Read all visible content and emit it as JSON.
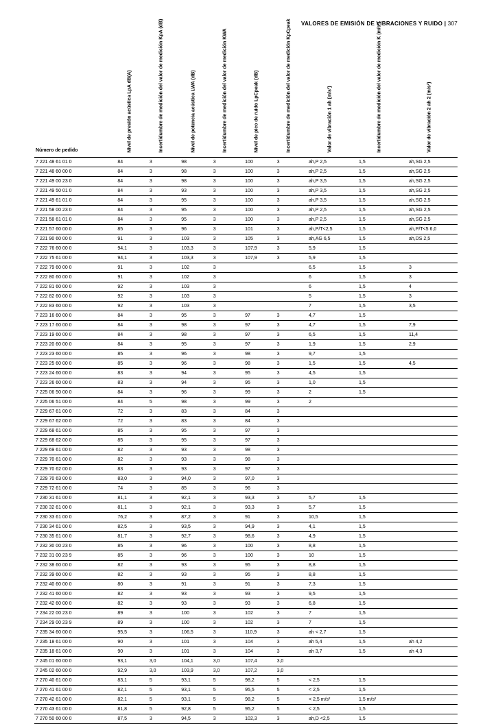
{
  "header": {
    "title": "VALORES DE EMISIÓN DE VIBRACIONES Y RUIDO",
    "page": "307"
  },
  "table": {
    "columns": [
      "Número de pedido",
      "Nivel de presión acústica LpA dB(A)",
      "Incertidumbre de medición del valor de medición KpA (dB)",
      "Nivel de potencia acústica LWA (dB)",
      "Incertidumbre de medición del valor de medición KWA",
      "Nivel de pico de ruido LpCpeak (dB)",
      "Incertidumbre de medición del valor de medición KpCpeak",
      "Valor de vibración 1 ah (m/s²)",
      "Incertidumbre de medición del valor de medición K (m/s²)",
      "Valor de vibración 2 ah 2 (m/s²)"
    ],
    "rows": [
      [
        "7 221 48 61 01 0",
        "84",
        "3",
        "98",
        "3",
        "100",
        "3",
        "ah,P 2,5",
        "1,5",
        "ah,SG 2,5"
      ],
      [
        "7 221 48 60 00 0",
        "84",
        "3",
        "98",
        "3",
        "100",
        "3",
        "ah,P 2,5",
        "1,5",
        "ah,SG 2,5"
      ],
      [
        "7 221 49 00 23 0",
        "84",
        "3",
        "98",
        "3",
        "100",
        "3",
        "ah,P 3,5",
        "1,5",
        "ah,SG 2,5"
      ],
      [
        "7 221 49 50 01 0",
        "84",
        "3",
        "93",
        "3",
        "100",
        "3",
        "ah,P 3,5",
        "1,5",
        "ah,SG 2,5"
      ],
      [
        "7 221 49 61 01 0",
        "84",
        "3",
        "95",
        "3",
        "100",
        "3",
        "ah,P 3,5",
        "1,5",
        "ah,SG 2,5"
      ],
      [
        "7 221 58 00 23 0",
        "84",
        "3",
        "95",
        "3",
        "100",
        "3",
        "ah,P 2,5",
        "1,5",
        "ah,SG 2,5"
      ],
      [
        "7 221 58 61 01 0",
        "84",
        "3",
        "95",
        "3",
        "100",
        "3",
        "ah,P 2,5",
        "1,5",
        "ah,SG 2,5"
      ],
      [
        "7 221 57 60 00 0",
        "85",
        "3",
        "96",
        "3",
        "101",
        "3",
        "ah,P/T<2,5",
        "1,5",
        "ah,P/T<5 6,0"
      ],
      [
        "7 221 90 60 00 0",
        "91",
        "3",
        "103",
        "3",
        "105",
        "3",
        "ah,AG 6,5",
        "1,5",
        "ah,DS 2,5"
      ],
      [
        "7 222 76 60 00 0",
        "94,1",
        "3",
        "103,3",
        "3",
        "107,9",
        "3",
        "5,9",
        "1,5",
        ""
      ],
      [
        "7 222 75 61 00 0",
        "94,1",
        "3",
        "103,3",
        "3",
        "107,9",
        "3",
        "5,9",
        "1,5",
        ""
      ],
      [
        "7 222 79 60 00 0",
        "91",
        "3",
        "102",
        "3",
        "",
        "",
        "6,5",
        "1,5",
        "3"
      ],
      [
        "7 222 80 60 00 0",
        "91",
        "3",
        "102",
        "3",
        "",
        "",
        "6",
        "1,5",
        "3"
      ],
      [
        "7 222 81 60 00 0",
        "92",
        "3",
        "103",
        "3",
        "",
        "",
        "6",
        "1,5",
        "4"
      ],
      [
        "7 222 82 60 00 0",
        "92",
        "3",
        "103",
        "3",
        "",
        "",
        "5",
        "1,5",
        "3"
      ],
      [
        "7 222 83 60 00 0",
        "92",
        "3",
        "103",
        "3",
        "",
        "",
        "7",
        "1,5",
        "3,5"
      ],
      [
        "7 223 16 60 00 0",
        "84",
        "3",
        "95",
        "3",
        "97",
        "3",
        "4,7",
        "1,5",
        ""
      ],
      [
        "7 223 17 60 00 0",
        "84",
        "3",
        "98",
        "3",
        "97",
        "3",
        "4,7",
        "1,5",
        "7,9"
      ],
      [
        "7 223 19 60 00 0",
        "84",
        "3",
        "98",
        "3",
        "97",
        "3",
        "6,5",
        "1,5",
        "11,4"
      ],
      [
        "7 223 20 60 00 0",
        "84",
        "3",
        "95",
        "3",
        "97",
        "3",
        "1,9",
        "1,5",
        "2,9"
      ],
      [
        "7 223 23 60 00 0",
        "85",
        "3",
        "96",
        "3",
        "98",
        "3",
        "9,7",
        "1,5",
        ""
      ],
      [
        "7 223 25 60 00 0",
        "85",
        "3",
        "96",
        "3",
        "98",
        "3",
        "1,5",
        "1,5",
        "4,5"
      ],
      [
        "7 223 24 60 00 0",
        "83",
        "3",
        "94",
        "3",
        "95",
        "3",
        "4,5",
        "1,5",
        ""
      ],
      [
        "7 223 26 60 00 0",
        "83",
        "3",
        "94",
        "3",
        "95",
        "3",
        "1,0",
        "1,5",
        ""
      ],
      [
        "7 225 06 50 00 0",
        "84",
        "3",
        "96",
        "3",
        "99",
        "3",
        "2",
        "1,5",
        ""
      ],
      [
        "7 225 06 51 00 0",
        "84",
        "5",
        "98",
        "3",
        "99",
        "3",
        "2",
        "",
        ""
      ],
      [
        "7 229 67 61 00 0",
        "72",
        "3",
        "83",
        "3",
        "84",
        "3",
        "",
        "",
        ""
      ],
      [
        "7 229 67 62 00 0",
        "72",
        "3",
        "83",
        "3",
        "84",
        "3",
        "",
        "",
        ""
      ],
      [
        "7 229 68 61 00 0",
        "85",
        "3",
        "95",
        "3",
        "97",
        "3",
        "",
        "",
        ""
      ],
      [
        "7 229 68 62 00 0",
        "85",
        "3",
        "95",
        "3",
        "97",
        "3",
        "",
        "",
        ""
      ],
      [
        "7 229 69 61 00 0",
        "82",
        "3",
        "93",
        "3",
        "98",
        "3",
        "",
        "",
        ""
      ],
      [
        "7 229 70 61 00 0",
        "82",
        "3",
        "93",
        "3",
        "98",
        "3",
        "",
        "",
        ""
      ],
      [
        "7 229 70 62 00 0",
        "83",
        "3",
        "93",
        "3",
        "97",
        "3",
        "",
        "",
        ""
      ],
      [
        "7 229 70 63 00 0",
        "83,0",
        "3",
        "94,0",
        "3",
        "97,0",
        "3",
        "",
        "",
        ""
      ],
      [
        "7 229 72 61 00 0",
        "74",
        "3",
        "85",
        "3",
        "96",
        "3",
        "",
        "",
        ""
      ],
      [
        "7 230 31 61 00 0",
        "81,1",
        "3",
        "92,1",
        "3",
        "93,3",
        "3",
        "5,7",
        "1,5",
        ""
      ],
      [
        "7 230 32 61 00 0",
        "81,1",
        "3",
        "92,1",
        "3",
        "93,3",
        "3",
        "5,7",
        "1,5",
        ""
      ],
      [
        "7 230 33 61 00 0",
        "76,2",
        "3",
        "87,2",
        "3",
        "91",
        "3",
        "10,5",
        "1,5",
        ""
      ],
      [
        "7 230 34 61 00 0",
        "82,5",
        "3",
        "93,5",
        "3",
        "94,9",
        "3",
        "4,1",
        "1,5",
        ""
      ],
      [
        "7 230 35 61 00 0",
        "81,7",
        "3",
        "92,7",
        "3",
        "98,6",
        "3",
        "4,9",
        "1,5",
        ""
      ],
      [
        "7 232 30 00 23 0",
        "85",
        "3",
        "96",
        "3",
        "100",
        "3",
        "8,8",
        "1,5",
        ""
      ],
      [
        "7 232 31 00 23 9",
        "85",
        "3",
        "96",
        "3",
        "100",
        "3",
        "10",
        "1,5",
        ""
      ],
      [
        "7 232 38 60 00 0",
        "82",
        "3",
        "93",
        "3",
        "95",
        "3",
        "8,8",
        "1,5",
        ""
      ],
      [
        "7 232 39 60 00 0",
        "82",
        "3",
        "93",
        "3",
        "95",
        "3",
        "8,8",
        "1,5",
        ""
      ],
      [
        "7 232 40 60 00 0",
        "80",
        "3",
        "91",
        "3",
        "91",
        "3",
        "7,3",
        "1,5",
        ""
      ],
      [
        "7 232 41 60 00 0",
        "82",
        "3",
        "93",
        "3",
        "93",
        "3",
        "9,5",
        "1,5",
        ""
      ],
      [
        "7 232 42 60 00 0",
        "82",
        "3",
        "93",
        "3",
        "93",
        "3",
        "6,8",
        "1,5",
        ""
      ],
      [
        "7 234 22 00 23 0",
        "89",
        "3",
        "100",
        "3",
        "102",
        "3",
        "7",
        "1,5",
        ""
      ],
      [
        "7 234 29 00 23 9",
        "89",
        "3",
        "100",
        "3",
        "102",
        "3",
        "7",
        "1,5",
        ""
      ],
      [
        "7 235 34 60 00 0",
        "95,5",
        "3",
        "106,5",
        "3",
        "110,9",
        "3",
        "ah < 2,7",
        "1,5",
        ""
      ],
      [
        "7 235 18 61 00 0",
        "90",
        "3",
        "101",
        "3",
        "104",
        "3",
        "ah 5,4",
        "1,5",
        "ah 4,2"
      ],
      [
        "7 235 18 61 00 0",
        "90",
        "3",
        "101",
        "3",
        "104",
        "3",
        "ah 3,7",
        "1,5",
        "ah 4,3"
      ],
      [
        "7 245 01 60 00 0",
        "93,1",
        "3,0",
        "104,1",
        "3,0",
        "107,4",
        "3,0",
        "",
        "",
        ""
      ],
      [
        "7 245 02 60 00 0",
        "92,9",
        "3,0",
        "103,9",
        "3,0",
        "107,2",
        "3,0",
        "",
        "",
        ""
      ],
      [
        "7 270 40 61 00 0",
        "83,1",
        "5",
        "93,1",
        "5",
        "98,2",
        "5",
        "< 2,5",
        "1,5",
        ""
      ],
      [
        "7 270 41 61 00 0",
        "82,1",
        "5",
        "93,1",
        "5",
        "95,5",
        "5",
        "< 2,5",
        "1,5",
        ""
      ],
      [
        "7 270 42 61 00 0",
        "82,1",
        "5",
        "93,1",
        "5",
        "98,2",
        "5",
        "< 2,5 m/s²",
        "1,5 m/s²",
        ""
      ],
      [
        "7 270 43 61 00 0",
        "81,8",
        "5",
        "92,8",
        "5",
        "95,2",
        "5",
        "< 2,5",
        "1,5",
        ""
      ],
      [
        "7 270 50 60 00 0",
        "87,5",
        "3",
        "94,5",
        "3",
        "102,3",
        "3",
        "ah,D <2,5",
        "1,5",
        ""
      ]
    ]
  }
}
